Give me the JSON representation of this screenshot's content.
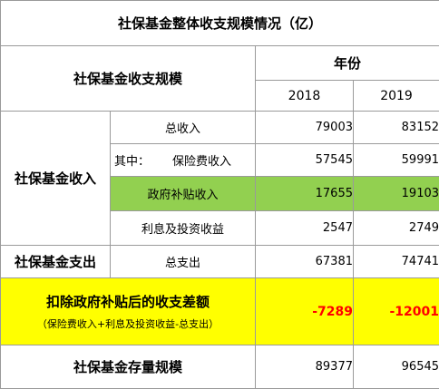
{
  "title": "社保基金整体收支规模情况（亿）",
  "header": {
    "scale_label": "社保基金收支规模",
    "year_label": "年份",
    "years": [
      "2018",
      "2019"
    ]
  },
  "income": {
    "section_label": "社保基金收入",
    "rows": [
      {
        "label": "总收入",
        "values": [
          "79003",
          "83152"
        ]
      },
      {
        "prefix": "其中：",
        "label": "保险费收入",
        "values": [
          "57545",
          "59991"
        ]
      },
      {
        "label": "政府补贴收入",
        "values": [
          "17655",
          "19103"
        ],
        "highlight": "#92d050"
      },
      {
        "label": "利息及投资收益",
        "values": [
          "2547",
          "2749"
        ]
      }
    ]
  },
  "expense": {
    "section_label": "社保基金支出",
    "row": {
      "label": "总支出",
      "values": [
        "67381",
        "74741"
      ]
    }
  },
  "difference": {
    "label": "扣除政府补贴后的收支差额",
    "formula": "（保险费收入+利息及投资收益-总支出）",
    "values": [
      "-7289",
      "-12001"
    ],
    "highlight": "#ffff00",
    "value_color": "#ff0000"
  },
  "stock": {
    "label": "社保基金存量规模",
    "values": [
      "89377",
      "96545"
    ]
  }
}
